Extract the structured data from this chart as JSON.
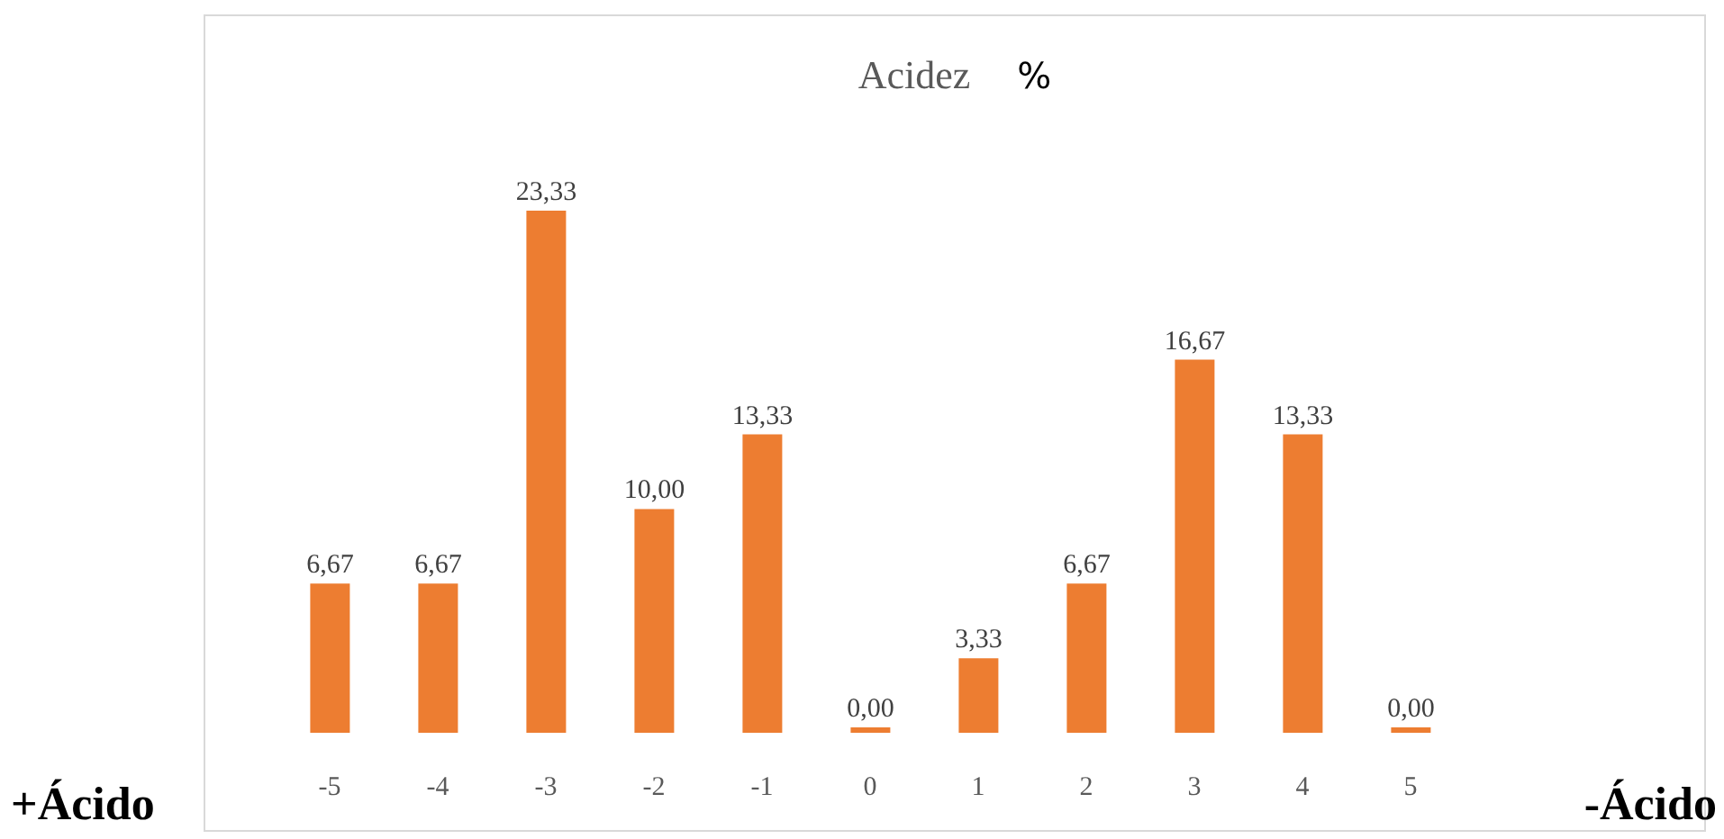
{
  "chart_data": {
    "type": "bar",
    "title": "Acidez",
    "subtitle": "%",
    "categories": [
      "-5",
      "-4",
      "-3",
      "-2",
      "-1",
      "0",
      "1",
      "2",
      "3",
      "4",
      "5"
    ],
    "values": [
      6.67,
      6.67,
      23.33,
      10,
      13.33,
      0,
      3.33,
      6.67,
      16.67,
      13.33,
      0
    ],
    "value_labels": [
      "6,67",
      "6,67",
      "23,33",
      "10,00",
      "13,33",
      "0,00",
      "3,33",
      "6,67",
      "16,67",
      "13,33",
      "0,00"
    ],
    "color": "#ed7d31",
    "grid": false,
    "legend": false,
    "tick_labels": "x",
    "annotations": [
      "+Ácido",
      "-Ácido"
    ]
  }
}
